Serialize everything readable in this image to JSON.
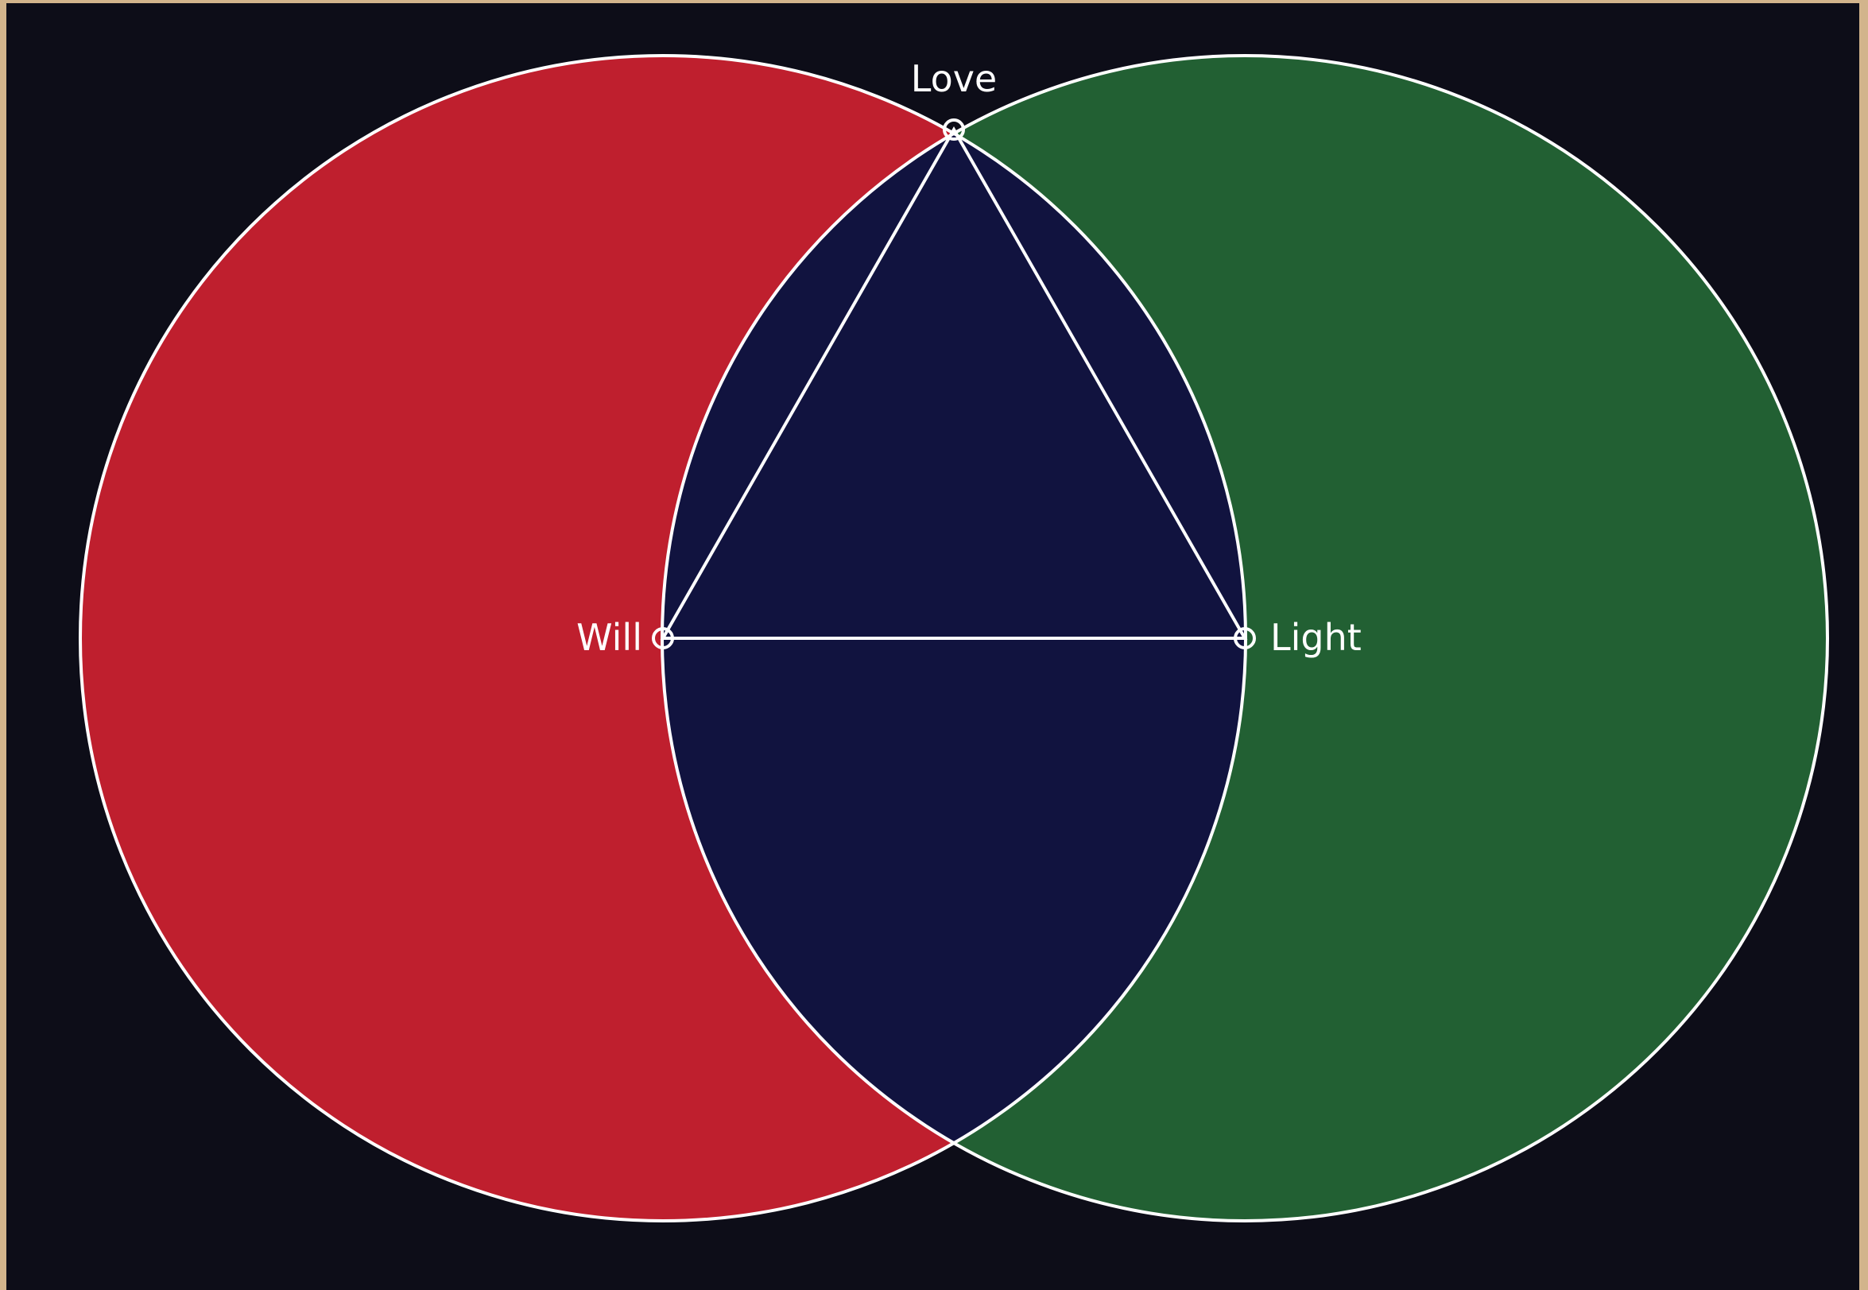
{
  "colors": {
    "background": "#0d0d18",
    "frame": "#d2b48c",
    "left_circle": "#bf1f2e",
    "right_circle": "#226033",
    "overlap": "#11133f",
    "line": "#ffffff",
    "text": "#ffffff"
  },
  "labels": {
    "top": "Love",
    "left": "Will",
    "right": "Light"
  }
}
